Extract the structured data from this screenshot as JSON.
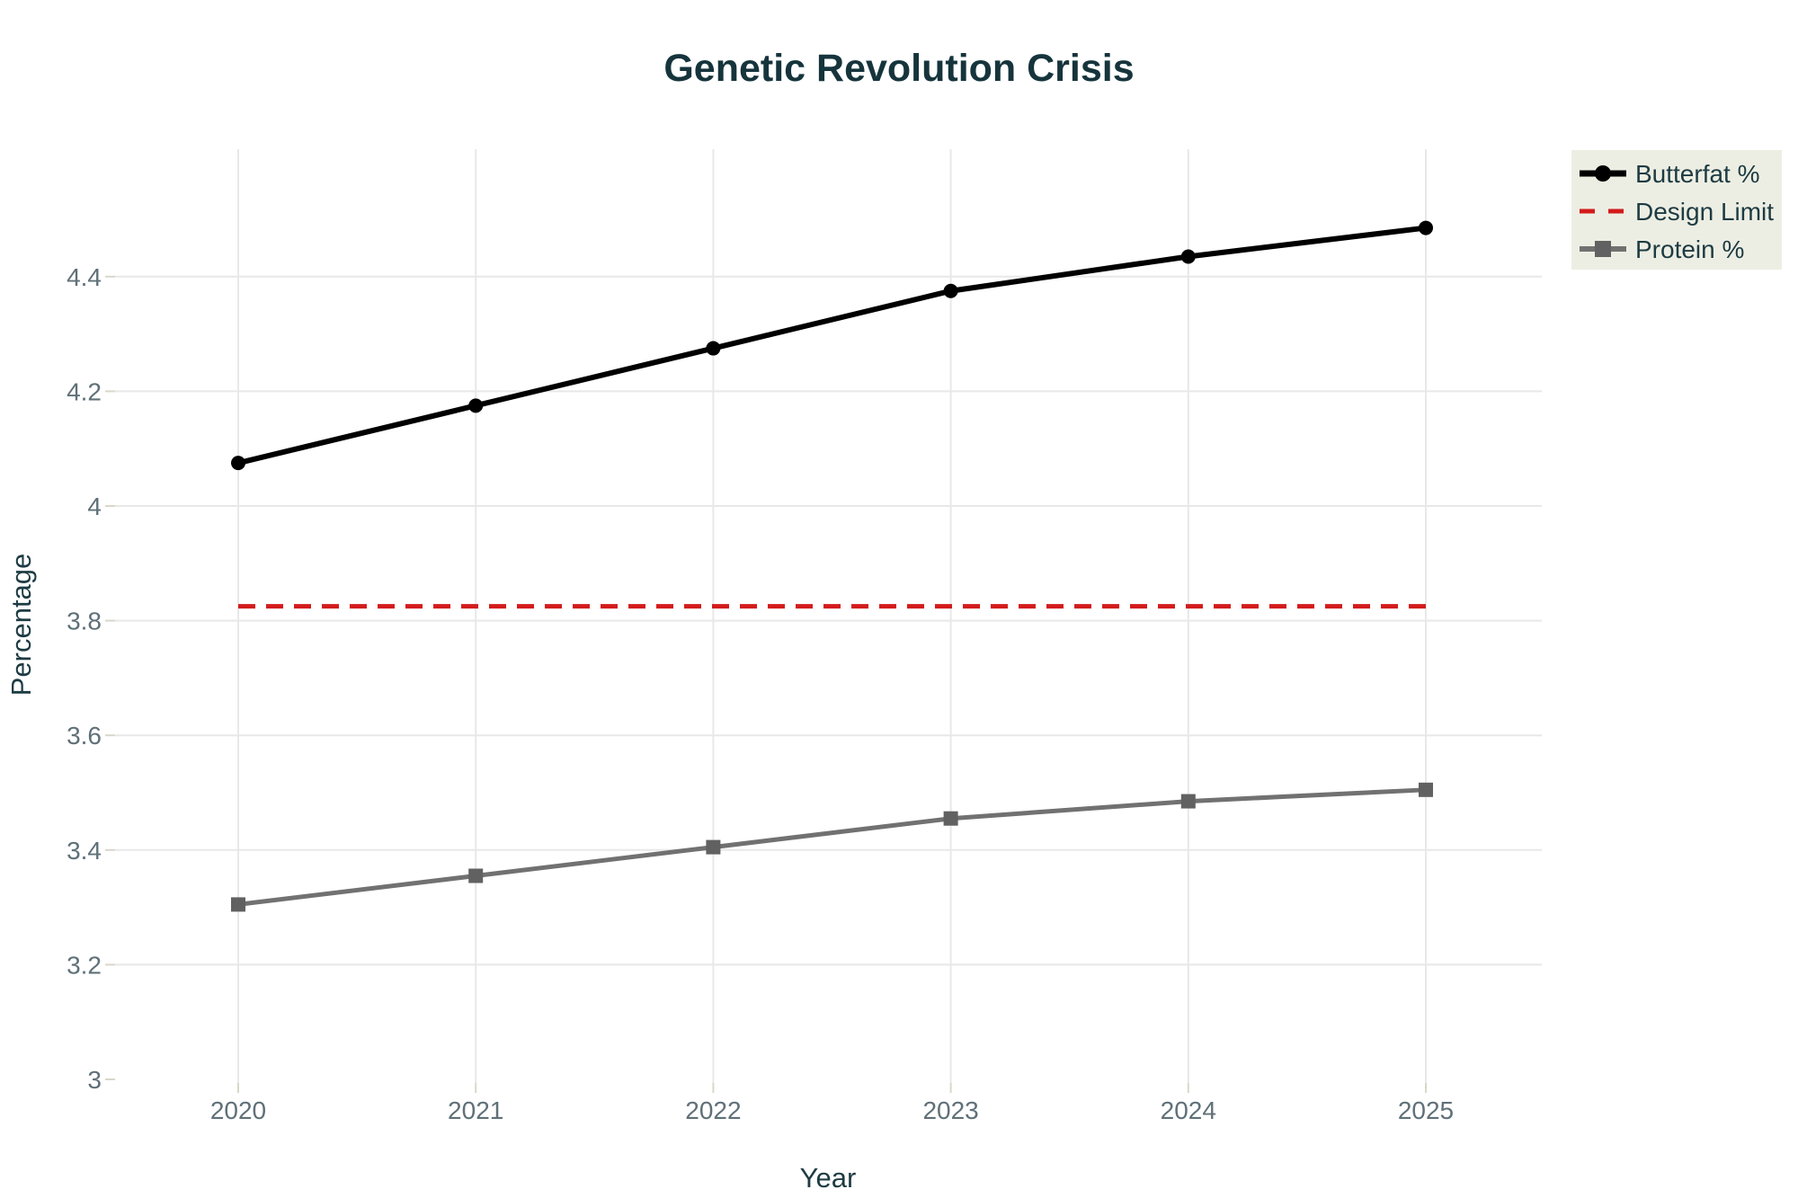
{
  "chart_data": {
    "type": "line",
    "title": "Genetic Revolution Crisis",
    "xlabel": "Year",
    "ylabel": "Percentage",
    "x": [
      2020,
      2021,
      2022,
      2023,
      2024,
      2025
    ],
    "x_tick_labels": [
      "2020",
      "2021",
      "2022",
      "2023",
      "2024",
      "2025"
    ],
    "y_ticks": [
      {
        "value": 3.0,
        "label": "3"
      },
      {
        "value": 3.2,
        "label": "3.2"
      },
      {
        "value": 3.4,
        "label": "3.4"
      },
      {
        "value": 3.6,
        "label": "3.6"
      },
      {
        "value": 3.8,
        "label": "3.8"
      },
      {
        "value": 4.0,
        "label": "4"
      },
      {
        "value": 4.2,
        "label": "4.2"
      },
      {
        "value": 4.4,
        "label": "4.4"
      }
    ],
    "xlim": [
      2019.48,
      2025.49
    ],
    "ylim": [
      2.99,
      4.62
    ],
    "grid": true,
    "series": [
      {
        "name": "Butterfat %",
        "color": "#000000",
        "marker": "circle",
        "marker_color": "#000000",
        "line_width": 6,
        "values": [
          4.075,
          4.175,
          4.275,
          4.375,
          4.435,
          4.485
        ]
      },
      {
        "name": "Protein %",
        "color": "#717171",
        "marker": "square",
        "marker_color": "#616161",
        "line_width": 5,
        "values": [
          3.305,
          3.355,
          3.405,
          3.455,
          3.485,
          3.505
        ]
      }
    ],
    "reference_line": {
      "name": "Design Limit",
      "value": 3.825,
      "color": "#d31b1b",
      "style": "dashed",
      "line_width": 5
    },
    "legend": {
      "position": "top-right",
      "background": "#edeee3",
      "entries": [
        "Butterfat %",
        "Design Limit",
        "Protein %"
      ]
    },
    "colors": {
      "title_text": "#16343c",
      "axis_title_text": "#1d3b43",
      "tick_text": "#5f7078",
      "gridline": "#e8e8e8",
      "tick_mark": "#d9d7ca",
      "background": "#ffffff"
    }
  }
}
